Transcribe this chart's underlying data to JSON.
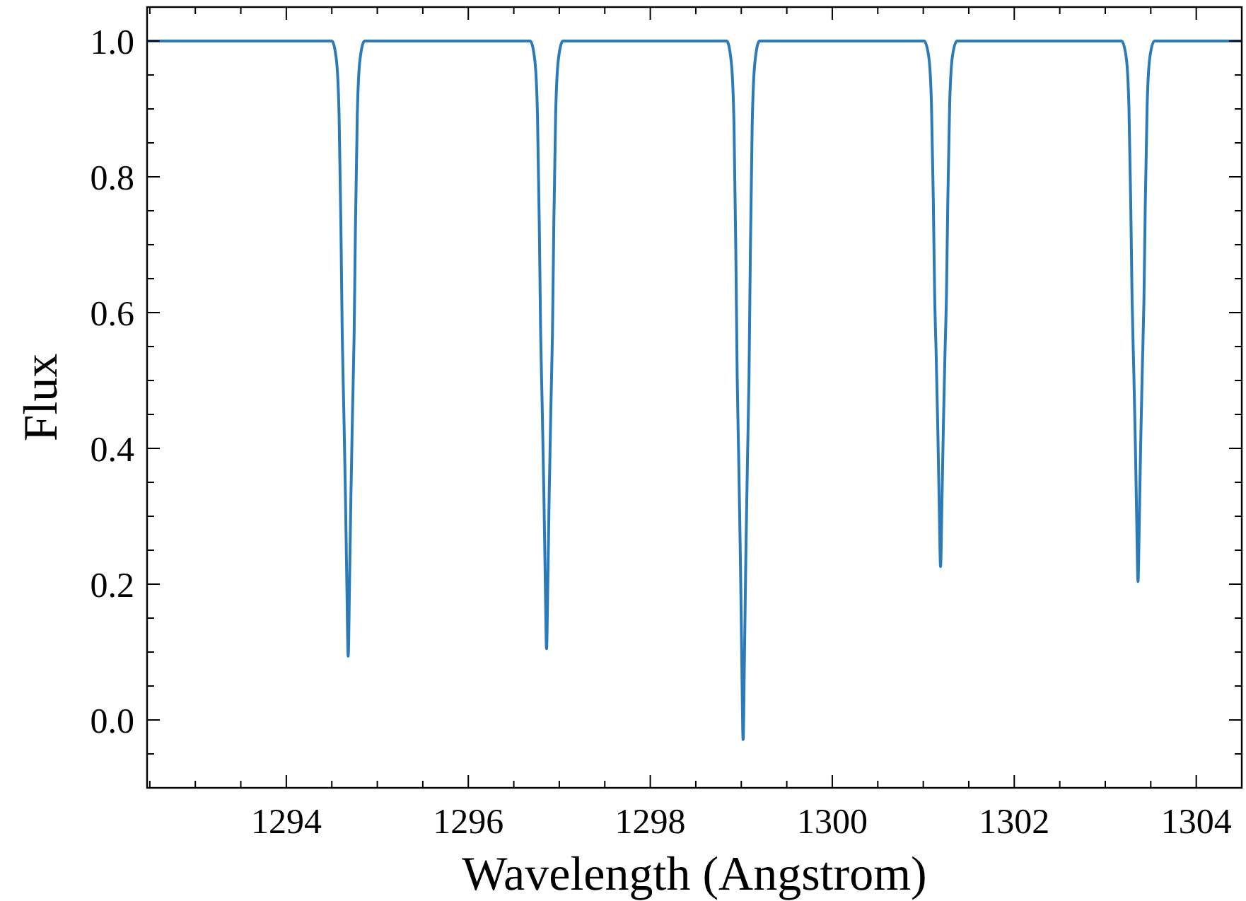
{
  "chart_data": {
    "type": "line",
    "xlabel": "Wavelength (Angstrom)",
    "ylabel": "Flux",
    "xlim": [
      1292.47,
      1304.5
    ],
    "ylim": [
      -0.1,
      1.05
    ],
    "xticks": [
      {
        "value": 1292.5,
        "label": null
      },
      {
        "value": 1293,
        "label": null
      },
      {
        "value": 1293.5,
        "label": null
      },
      1294,
      {
        "value": 1294.5,
        "label": null
      },
      {
        "value": 1295,
        "label": null
      },
      {
        "value": 1295.5,
        "label": null
      },
      1296,
      {
        "value": 1296.5,
        "label": null
      },
      {
        "value": 1297,
        "label": null
      },
      {
        "value": 1297.5,
        "label": null
      },
      1298,
      {
        "value": 1298.5,
        "label": null
      },
      {
        "value": 1299,
        "label": null
      },
      {
        "value": 1299.5,
        "label": null
      },
      1300,
      {
        "value": 1300.5,
        "label": null
      },
      {
        "value": 1301,
        "label": null
      },
      {
        "value": 1301.5,
        "label": null
      },
      1302,
      {
        "value": 1302.5,
        "label": null
      },
      {
        "value": 1303,
        "label": null
      },
      {
        "value": 1303.5,
        "label": null
      },
      1304
    ],
    "yticks": [
      {
        "value": -0.05,
        "label": null
      },
      {
        "value": 0,
        "label": "0.0"
      },
      {
        "value": 0.05,
        "label": null
      },
      {
        "value": 0.1,
        "label": null
      },
      {
        "value": 0.15,
        "label": null
      },
      0.2,
      {
        "value": 0.25,
        "label": null
      },
      {
        "value": 0.3,
        "label": null
      },
      {
        "value": 0.35,
        "label": null
      },
      0.4,
      {
        "value": 0.45,
        "label": null
      },
      {
        "value": 0.5,
        "label": null
      },
      {
        "value": 0.55,
        "label": null
      },
      0.6,
      {
        "value": 0.65,
        "label": null
      },
      {
        "value": 0.7,
        "label": null
      },
      {
        "value": 0.75,
        "label": null
      },
      0.8,
      {
        "value": 0.85,
        "label": null
      },
      {
        "value": 0.9,
        "label": null
      },
      {
        "value": 0.95,
        "label": null
      },
      {
        "value": 1,
        "label": "1.0"
      }
    ],
    "grid": false,
    "marker": "none",
    "line_style": "solid",
    "series": [
      {
        "color": "#2b7bba",
        "x": [
          1292.47,
          1294.5,
          1294.55,
          1294.58,
          1294.6,
          1294.615,
          1294.632,
          1294.65,
          1294.665,
          1294.68,
          1294.695,
          1294.71,
          1294.728,
          1294.745,
          1294.76,
          1294.78,
          1294.81,
          1294.86,
          1296.68,
          1296.73,
          1296.76,
          1296.78,
          1296.795,
          1296.812,
          1296.83,
          1296.845,
          1296.86,
          1296.875,
          1296.89,
          1296.908,
          1296.925,
          1296.94,
          1296.96,
          1296.99,
          1297.04,
          1298.84,
          1298.89,
          1298.92,
          1298.94,
          1298.955,
          1298.972,
          1298.99,
          1299.005,
          1299.02,
          1299.035,
          1299.05,
          1299.068,
          1299.085,
          1299.1,
          1299.12,
          1299.15,
          1299.2,
          1301.01,
          1301.06,
          1301.09,
          1301.11,
          1301.125,
          1301.142,
          1301.16,
          1301.175,
          1301.19,
          1301.205,
          1301.22,
          1301.238,
          1301.255,
          1301.27,
          1301.29,
          1301.32,
          1301.37,
          1303.18,
          1303.23,
          1303.26,
          1303.28,
          1303.295,
          1303.312,
          1303.33,
          1303.345,
          1303.36,
          1303.375,
          1303.39,
          1303.408,
          1303.425,
          1303.44,
          1303.46,
          1303.49,
          1303.54,
          1304.5
        ],
        "values": [
          1,
          1,
          0.973,
          0.891,
          0.728,
          0.565,
          0.456,
          0.33,
          0.203,
          0.094,
          0.203,
          0.33,
          0.456,
          0.565,
          0.728,
          0.891,
          0.973,
          1,
          1,
          0.973,
          0.893,
          0.732,
          0.57,
          0.463,
          0.338,
          0.212,
          0.105,
          0.212,
          0.338,
          0.463,
          0.57,
          0.732,
          0.893,
          0.973,
          1,
          1,
          0.969,
          0.877,
          0.691,
          0.506,
          0.383,
          0.239,
          0.094,
          -0.029,
          0.094,
          0.239,
          0.383,
          0.506,
          0.691,
          0.877,
          0.969,
          1,
          1,
          0.977,
          0.907,
          0.768,
          0.628,
          0.536,
          0.427,
          0.319,
          0.226,
          0.319,
          0.427,
          0.536,
          0.628,
          0.768,
          0.907,
          0.977,
          1,
          1,
          0.976,
          0.904,
          0.761,
          0.618,
          0.522,
          0.411,
          0.3,
          0.204,
          0.3,
          0.411,
          0.522,
          0.618,
          0.761,
          0.904,
          0.976,
          1,
          1
        ]
      }
    ]
  }
}
